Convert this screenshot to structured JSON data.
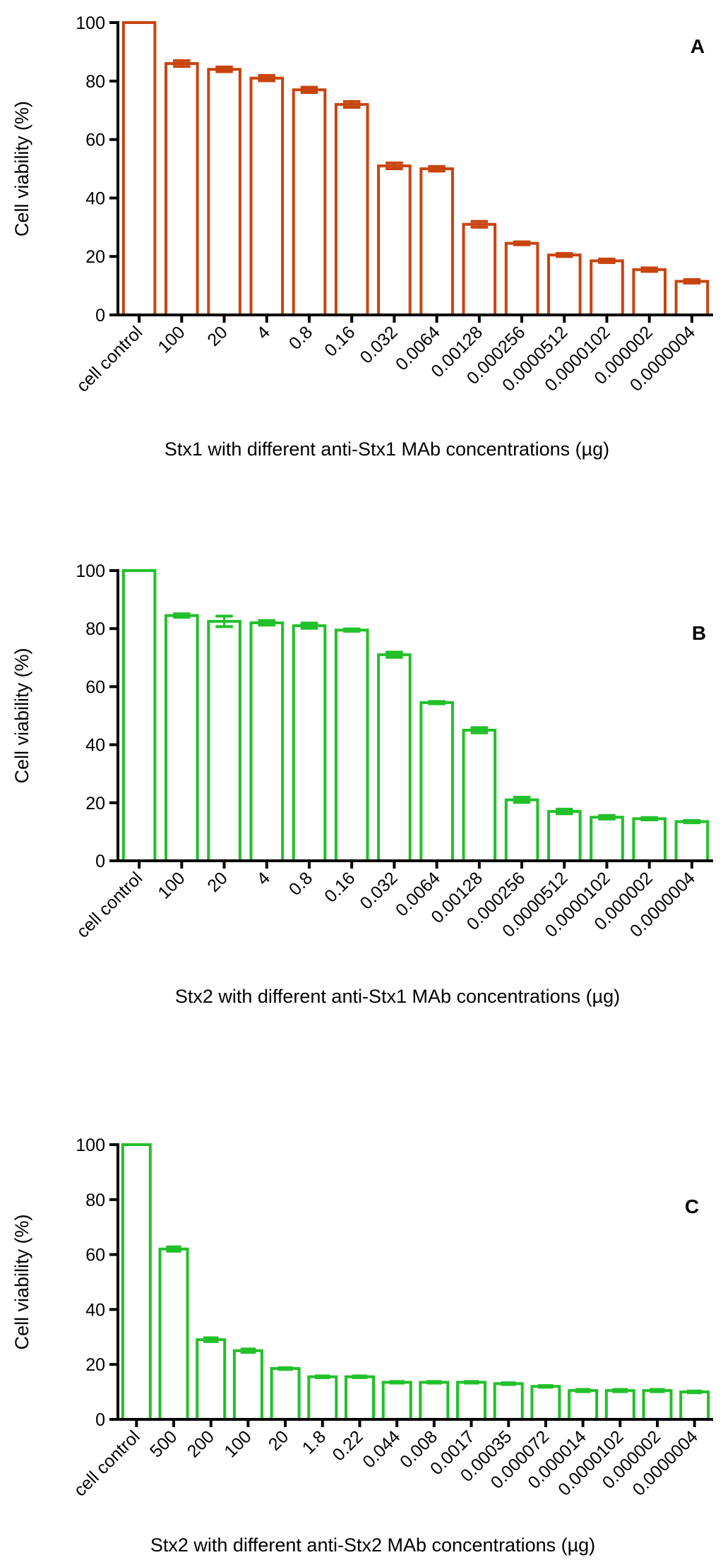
{
  "figure": {
    "colors": {
      "panel_a": "#c8440f",
      "panel_b": "#22c02a",
      "panel_c": "#22c02a",
      "axis": "#000000",
      "fill": "#ffffff"
    }
  },
  "chart_data": [
    {
      "type": "bar",
      "panel_label": "A",
      "title": "",
      "ylabel": "Cell viability (%)",
      "xlabel": "Stx1 with different anti-Stx1 MAb concentrations (µg)",
      "ylim": [
        0,
        100
      ],
      "yticks": [
        0,
        20,
        40,
        60,
        80,
        100
      ],
      "categories": [
        "cell control",
        "100",
        "20",
        "4",
        "0.8",
        "0.16",
        "0.032",
        "0.0064",
        "0.00128",
        "0.000256",
        "0.0000512",
        "0.0000102",
        "0.000002",
        "0.0000004"
      ],
      "values": [
        100,
        86,
        84,
        81,
        77,
        72,
        51,
        50,
        31,
        24.5,
        20.5,
        18.5,
        15.5,
        11.5
      ],
      "errors": [
        0,
        1.0,
        0.8,
        0.9,
        0.9,
        1.0,
        1.0,
        0.8,
        1.0,
        0.5,
        0.5,
        0.6,
        0.6,
        0.6
      ],
      "color": "#c8440f",
      "legend": null,
      "grid": false
    },
    {
      "type": "bar",
      "panel_label": "B",
      "title": "",
      "ylabel": "Cell viability (%)",
      "xlabel": "Stx2 with different anti-Stx1 MAb concentrations (µg)",
      "ylim": [
        0,
        100
      ],
      "yticks": [
        0,
        20,
        40,
        60,
        80,
        100
      ],
      "categories": [
        "cell control",
        "100",
        "20",
        "4",
        "0.8",
        "0.16",
        "0.032",
        "0.0064",
        "0.00128",
        "0.000256",
        "0.0000512",
        "0.0000102",
        "0.000002",
        "0.0000004"
      ],
      "values": [
        100,
        84.5,
        82.5,
        82,
        81,
        79.5,
        71,
        54.5,
        45,
        21,
        17,
        15,
        14.5,
        13.5
      ],
      "errors": [
        0,
        0.6,
        1.8,
        0.8,
        0.9,
        0.4,
        0.9,
        0.4,
        0.9,
        0.9,
        0.8,
        0.6,
        0.4,
        0.4
      ],
      "color": "#22c02a",
      "legend": null,
      "grid": false
    },
    {
      "type": "bar",
      "panel_label": "C",
      "title": "",
      "ylabel": "Cell viability (%)",
      "xlabel": "Stx2 with different anti-Stx2 MAb concentrations (µg)",
      "ylim": [
        0,
        100
      ],
      "yticks": [
        0,
        20,
        40,
        60,
        80,
        100
      ],
      "categories": [
        "cell control",
        "500",
        "200",
        "100",
        "20",
        "1.8",
        "0.22",
        "0.044",
        "0.008",
        "0.0017",
        "0.00035",
        "0.000072",
        "0.000014",
        "0.0000102",
        "0.000002",
        "0.0000004"
      ],
      "values": [
        100,
        62,
        29,
        25,
        18.5,
        15.5,
        15.5,
        13.5,
        13.5,
        13.5,
        13,
        12,
        10.5,
        10.5,
        10.5,
        10
      ],
      "errors": [
        0,
        0.8,
        0.7,
        0.6,
        0.3,
        0.3,
        0.3,
        0.3,
        0.3,
        0.3,
        0.3,
        0.3,
        0.4,
        0.4,
        0.4,
        0.3
      ],
      "color": "#22c02a",
      "legend": null,
      "grid": false
    }
  ]
}
